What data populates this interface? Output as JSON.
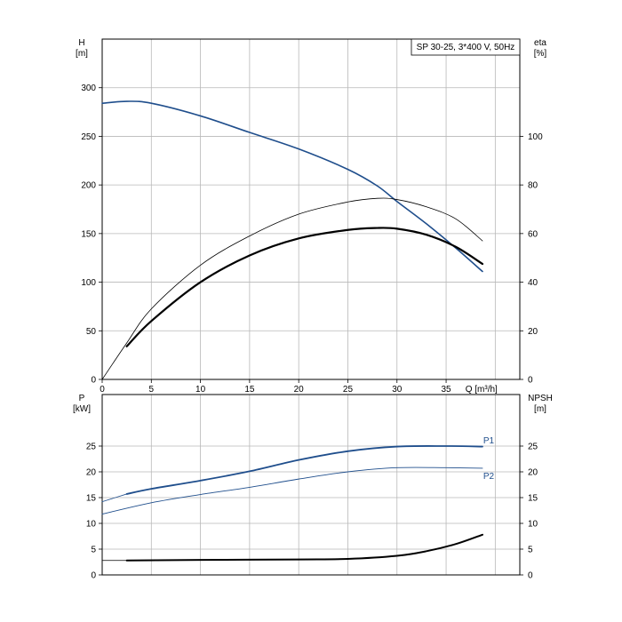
{
  "colors": {
    "blue": "#1f4e8c",
    "black": "#000000",
    "grid": "#b8b8b8",
    "frame": "#000000"
  },
  "chart_data": [
    {
      "type": "line",
      "legend_text": "SP 30-25, 3*400 V, 50Hz",
      "legend_position": "top-right",
      "grid": true,
      "x_label": "Q [m³/h]",
      "x_range": [
        0,
        42.5
      ],
      "x_ticks": [
        0,
        5,
        10,
        15,
        20,
        25,
        30,
        35
      ],
      "y_left": {
        "label_line1": "H",
        "label_line2": "[m]",
        "range": [
          0,
          350
        ],
        "ticks": [
          0,
          50,
          100,
          150,
          200,
          250,
          300
        ]
      },
      "y_right": {
        "label_line1": "eta",
        "label_line2": "[%]",
        "range": [
          0,
          140
        ],
        "ticks": [
          0,
          20,
          40,
          60,
          80,
          100
        ]
      },
      "series": [
        {
          "axis": "left",
          "color": "blue",
          "width": 1.6,
          "x": [
            0,
            2.5,
            5,
            10,
            15,
            20,
            25,
            28,
            30,
            33,
            36,
            38.7
          ],
          "y": [
            284,
            286,
            284,
            271,
            254,
            237,
            216,
            199,
            183,
            160,
            135,
            111
          ]
        },
        {
          "axis": "right",
          "color": "black",
          "width": 0.8,
          "x": [
            0,
            2.5,
            5,
            10,
            15,
            20,
            25,
            28,
            30,
            33,
            36,
            38.7
          ],
          "y": [
            0,
            15,
            29,
            47,
            59,
            68,
            73,
            74.5,
            74,
            71,
            66,
            57
          ]
        },
        {
          "axis": "right",
          "color": "black",
          "width": 2.2,
          "x": [
            2.5,
            5,
            10,
            15,
            20,
            25,
            28,
            30,
            33,
            36,
            38.7
          ],
          "y": [
            13.6,
            24,
            40,
            51,
            58,
            61.5,
            62.3,
            62,
            59.5,
            54.5,
            47.5
          ]
        }
      ]
    },
    {
      "type": "line",
      "grid": true,
      "x_range": [
        0,
        42.5
      ],
      "y_left": {
        "label_line1": "P",
        "label_line2": "[kW]",
        "range": [
          0,
          35
        ],
        "ticks": [
          0,
          5,
          10,
          15,
          20,
          25
        ]
      },
      "y_right": {
        "label_line1": "NPSH",
        "label_line2": "[m]",
        "range": [
          0,
          35
        ],
        "ticks": [
          0,
          5,
          10,
          15,
          20,
          25
        ]
      },
      "series": [
        {
          "name": "P1",
          "axis": "left",
          "color": "blue",
          "width": 0.8,
          "x": [
            0,
            2.5
          ],
          "y": [
            14.2,
            15.7
          ]
        },
        {
          "name": "P1",
          "axis": "left",
          "color": "blue",
          "width": 1.8,
          "x": [
            2.5,
            5,
            10,
            15,
            20,
            25,
            30,
            35,
            38.7
          ],
          "y": [
            15.7,
            16.7,
            18.3,
            20.1,
            22.3,
            24.0,
            24.9,
            25.0,
            24.9
          ]
        },
        {
          "name": "P2",
          "axis": "left",
          "color": "blue",
          "width": 0.9,
          "x": [
            0,
            5,
            10,
            15,
            20,
            25,
            30,
            35,
            38.7
          ],
          "y": [
            11.8,
            14.0,
            15.6,
            17.0,
            18.6,
            20.0,
            20.8,
            20.8,
            20.7
          ]
        },
        {
          "axis": "right",
          "color": "black",
          "width": 0.8,
          "x": [
            0,
            2.5
          ],
          "y": [
            2.8,
            2.8
          ]
        },
        {
          "axis": "right",
          "color": "black",
          "width": 2.0,
          "x": [
            2.5,
            10,
            20,
            25,
            30,
            33,
            36,
            38.7
          ],
          "y": [
            2.8,
            2.9,
            3.0,
            3.1,
            3.7,
            4.6,
            6.0,
            7.8
          ]
        }
      ],
      "series_labels": [
        "P1",
        "P2"
      ]
    }
  ]
}
